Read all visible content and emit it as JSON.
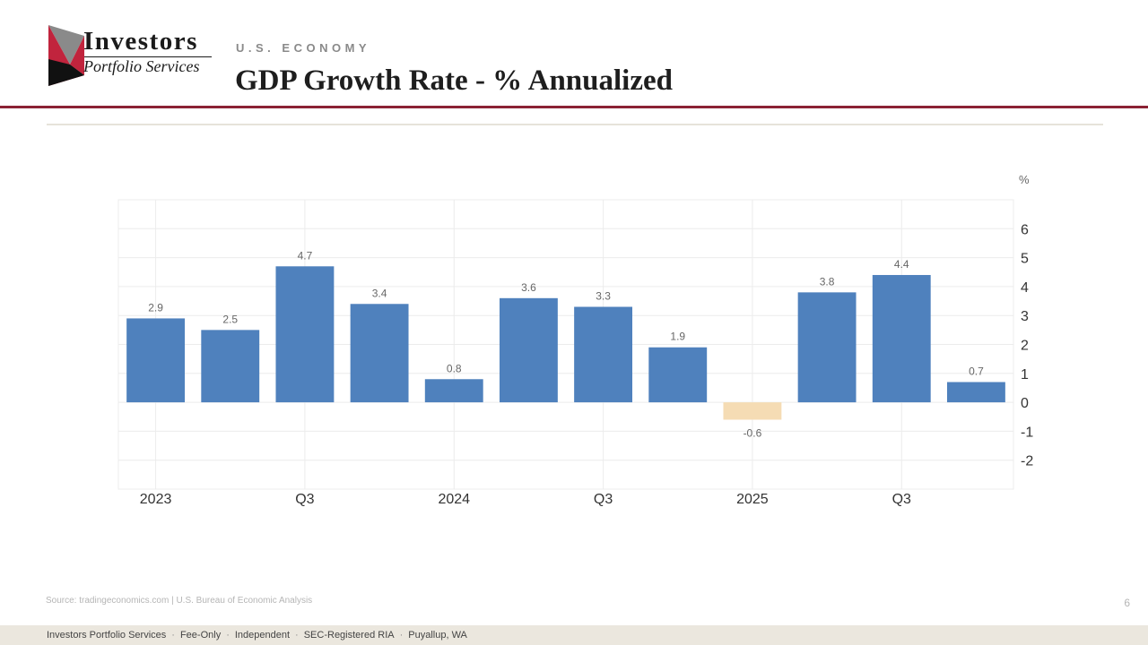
{
  "brand": {
    "name": "Investors",
    "subtitle": "Portfolio Services"
  },
  "header": {
    "section": "U.S. ECONOMY",
    "title": "GDP Growth Rate - % Annualized"
  },
  "chart_data": {
    "type": "bar",
    "title": "GDP Growth Rate - % Annualized",
    "ylabel": "%",
    "xlabel": "",
    "categories": [
      "2023 Q1",
      "2023 Q2",
      "2023 Q3",
      "2023 Q4",
      "2024 Q1",
      "2024 Q2",
      "2024 Q3",
      "2024 Q4",
      "2025 Q1",
      "2025 Q2",
      "2025 Q3",
      "2025 Q4"
    ],
    "values": [
      2.9,
      2.5,
      4.7,
      3.4,
      0.8,
      3.6,
      3.3,
      1.9,
      -0.6,
      3.8,
      4.4,
      0.7
    ],
    "data_labels": [
      "2.9",
      "2.5",
      "4.7",
      "3.4",
      "0.8",
      "3.6",
      "3.3",
      "1.9",
      "-0.6",
      "3.8",
      "4.4",
      "0.7"
    ],
    "x_tick_labels": [
      {
        "at": 0,
        "label": "2023"
      },
      {
        "at": 2,
        "label": "Q3"
      },
      {
        "at": 4,
        "label": "2024"
      },
      {
        "at": 6,
        "label": "Q3"
      },
      {
        "at": 8,
        "label": "2025"
      },
      {
        "at": 10,
        "label": "Q3"
      }
    ],
    "y_ticks": [
      -2,
      -1,
      0,
      1,
      2,
      3,
      4,
      5,
      6
    ],
    "ylim": [
      -3,
      7
    ],
    "grid": true,
    "axis_position": "right",
    "colors": {
      "positive": "#4f81bd",
      "negative": "#f5dcb4",
      "grid": "#ececec",
      "text": "#333333",
      "label": "#666666"
    }
  },
  "footer": {
    "source": "Source: tradingeconomics.com | U.S. Bureau of Economic Analysis",
    "page_number": "6",
    "items": [
      "Investors Portfolio Services",
      "Fee-Only",
      "Independent",
      "SEC-Registered RIA",
      "Puyallup, WA"
    ]
  }
}
